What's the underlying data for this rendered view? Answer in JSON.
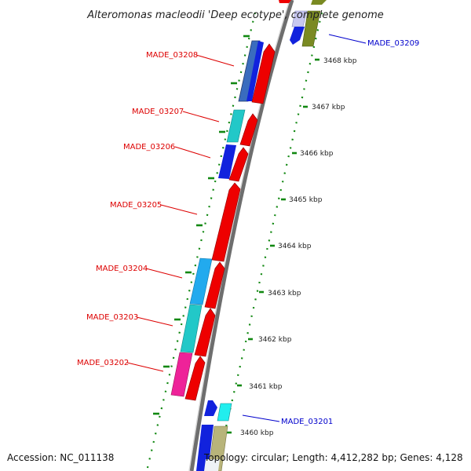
{
  "title": "Alteromonas macleodii 'Deep ecotype', complete genome",
  "footer": {
    "accession": "Accession: NC_011138",
    "summary": "Topology: circular; Length: 4,412,282 bp; Genes: 4,128"
  },
  "ruler": {
    "labels": [
      "3468 kbp",
      "3467 kbp",
      "3466 kbp",
      "3465 kbp",
      "3464 kbp",
      "3463 kbp",
      "3462 kbp",
      "3461 kbp",
      "3460 kbp"
    ]
  },
  "genes_left": [
    {
      "label": "MADE_03208"
    },
    {
      "label": "MADE_03207"
    },
    {
      "label": "MADE_03206"
    },
    {
      "label": "MADE_03205"
    },
    {
      "label": "MADE_03204"
    },
    {
      "label": "MADE_03203"
    },
    {
      "label": "MADE_03202"
    }
  ],
  "genes_right": [
    {
      "label": "MADE_03209"
    },
    {
      "label": "MADE_03201"
    }
  ],
  "colors": {
    "backbone": "#8a8a8a",
    "gene_forward": "#ee0000",
    "ruler_tick": "#118811",
    "label_left": "#dd0000",
    "label_right": "#0000cc",
    "cog_blue": "#1122dd",
    "cog_cyan": "#22c8c8",
    "cog_skyblue": "#22aaee",
    "cog_magenta": "#ee2299",
    "cog_olive": "#7a8a22",
    "cog_khaki": "#b8b47a",
    "cog_lavender": "#c8c8f0",
    "cog_aqua": "#22eeee",
    "cog_steelblue": "#3366bb"
  }
}
